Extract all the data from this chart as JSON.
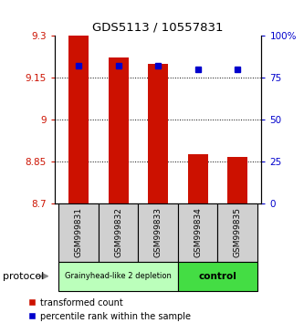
{
  "title": "GDS5113 / 10557831",
  "samples": [
    "GSM999831",
    "GSM999832",
    "GSM999833",
    "GSM999834",
    "GSM999835"
  ],
  "red_values": [
    9.3,
    9.22,
    9.2,
    8.875,
    8.865
  ],
  "blue_values": [
    82,
    82,
    82,
    80,
    80
  ],
  "ylim_left": [
    8.7,
    9.3
  ],
  "ylim_right": [
    0,
    100
  ],
  "yticks_left": [
    8.7,
    8.85,
    9.0,
    9.15,
    9.3
  ],
  "yticks_left_labels": [
    "8.7",
    "8.85",
    "9",
    "9.15",
    "9.3"
  ],
  "yticks_right": [
    0,
    25,
    50,
    75,
    100
  ],
  "yticks_right_labels": [
    "0",
    "25",
    "50",
    "75",
    "100%"
  ],
  "grid_values": [
    8.85,
    9.0,
    9.15
  ],
  "bar_color": "#cc1100",
  "dot_color": "#0000cc",
  "bar_width": 0.5,
  "group1_samples": [
    0,
    1,
    2
  ],
  "group2_samples": [
    3,
    4
  ],
  "group1_label": "Grainyhead-like 2 depletion",
  "group2_label": "control",
  "group1_color": "#bbffbb",
  "group2_color": "#44dd44",
  "group_border_color": "#000000",
  "sample_box_color": "#d0d0d0",
  "protocol_label": "protocol",
  "legend_red": "transformed count",
  "legend_blue": "percentile rank within the sample",
  "base_value": 8.7
}
